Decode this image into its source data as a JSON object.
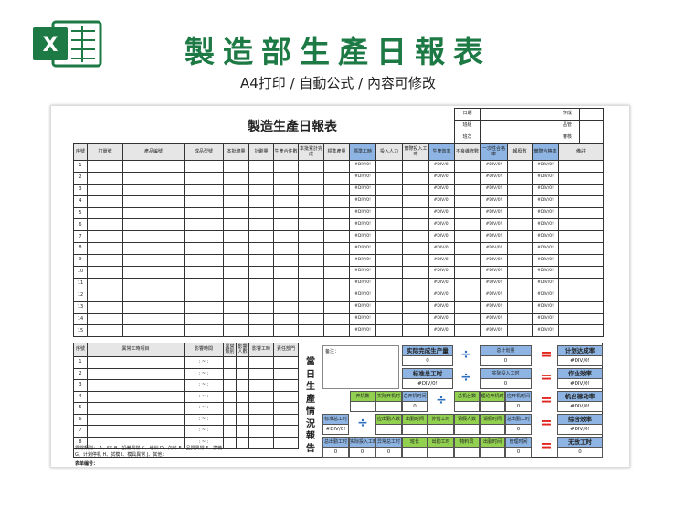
{
  "header": {
    "title": "製造部生產日報表",
    "subtitle": "A4打印 / 自動公式 / 內容可修改",
    "logo_letter": "X",
    "colors": {
      "title": "#1d7a44",
      "blue_cell": "#8db4e2",
      "green_cell": "#92d050",
      "operator_eq": "#e0261e",
      "operator_div": "#2f6fbf"
    }
  },
  "sheet": {
    "title": "製造生產日報表",
    "info": [
      [
        "日期",
        "",
        "作成",
        ""
      ],
      [
        "班組",
        "",
        "品管",
        ""
      ],
      [
        "班次",
        "",
        "審核",
        ""
      ]
    ],
    "columns": [
      "序號",
      "訂單號",
      "產品編號",
      "成品型號",
      "本批總量",
      "計劃量",
      "生產合件數",
      "本批累計完成",
      "標準產量",
      "標準工時",
      "投入人力",
      "實際投入工時",
      "生產效率",
      "不良維修數",
      "一次性合格率",
      "報廢數",
      "實際合格率",
      "備註"
    ],
    "blue_columns": [
      9,
      12,
      14,
      16
    ],
    "formula_value": "#DIV/0!",
    "rows": [
      "1",
      "2",
      "3",
      "4",
      "5",
      "6",
      "7",
      "8",
      "9",
      "10",
      "11",
      "12",
      "13",
      "14",
      "15"
    ],
    "abnormal": {
      "columns": [
        "序號",
        "異常工時項目",
        "影響時間",
        "異常類別",
        "影響人數",
        "影響工時",
        "責任部門"
      ],
      "rows": [
        "1",
        "2",
        "3",
        "4",
        "5",
        "6",
        "7",
        "8"
      ],
      "time_placeholder": ":  ~  :",
      "note1": "異常類別： A、SS  B、設備異常  C、培训  D、欠料  E、品質異常  F、換機",
      "note2": "G、计划停机  H、試模  I、模具異常  J、其他：",
      "form_no": "表单编号："
    },
    "report": {
      "label": "當日生產情況報告",
      "remark": "备注：",
      "boxes": [
        {
          "label": "实际完成生产量",
          "value": "0"
        },
        {
          "label": "总计划量",
          "value": "0"
        },
        {
          "label": "计划达成率",
          "value": "#DIV/0!"
        },
        {
          "label": "标准总工时",
          "value": "#DIV/0!"
        },
        {
          "label": "实际投入工时",
          "value": "0"
        },
        {
          "label": "作业效率",
          "value": "#DIV/0!"
        },
        {
          "label": "开机数",
          "value": ""
        },
        {
          "label": "实际开机时",
          "value": ""
        },
        {
          "label": "总开机时间",
          "value": "0"
        },
        {
          "label": "总机台数",
          "value": ""
        },
        {
          "label": "理论开机时",
          "value": ""
        },
        {
          "label": "应开机时间",
          "value": "0"
        },
        {
          "label": "机台稼动率",
          "value": "#DIV/0!"
        },
        {
          "label": "标准总工时",
          "value": "#DIV/0!"
        },
        {
          "label": "应出勤人数",
          "value": ""
        },
        {
          "label": "出勤时间",
          "value": ""
        },
        {
          "label": "外借工时",
          "value": ""
        },
        {
          "label": "请假人数",
          "value": ""
        },
        {
          "label": "请假时间",
          "value": ""
        },
        {
          "label": "总出勤工时",
          "value": "0"
        },
        {
          "label": "综合效率",
          "value": "#DIV/0!"
        },
        {
          "label": "总出勤工时",
          "value": "0"
        },
        {
          "label": "实际投入工时",
          "value": "0"
        },
        {
          "label": "异常总工时",
          "value": "0"
        },
        {
          "label": "班长",
          "value": ""
        },
        {
          "label": "出勤工时",
          "value": ""
        },
        {
          "label": "物料员",
          "value": ""
        },
        {
          "label": "出勤时间",
          "value": ""
        },
        {
          "label": "管理时间",
          "value": "0"
        },
        {
          "label": "无效工时",
          "value": "0"
        }
      ],
      "operators": {
        "divide": "÷",
        "equals": "=",
        "multiply": "×",
        "plus": "+",
        "minus": "−"
      }
    }
  }
}
